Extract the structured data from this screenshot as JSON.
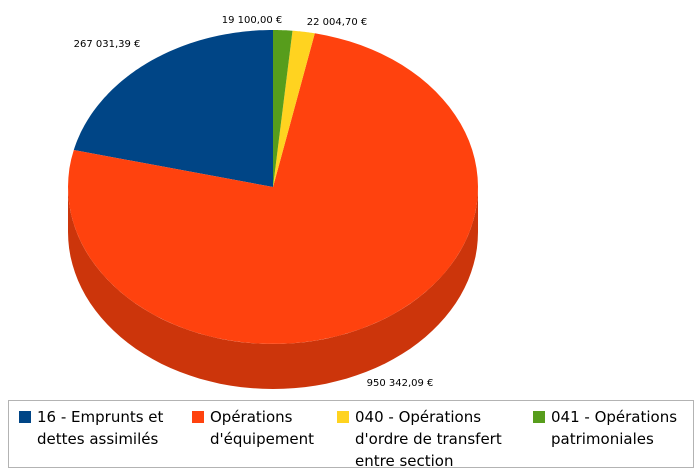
{
  "chart_data": {
    "type": "pie",
    "categories": [
      "16 - Emprunts et dettes assimilés",
      "Opérations d'équipement",
      "040 - Opérations d'ordre de transfert entre section",
      "041 - Opérations patrimoniales"
    ],
    "values": [
      267031.39,
      950342.09,
      22004.7,
      19100.0
    ],
    "value_labels": [
      "267 031,39 €",
      "950 342,09 €",
      "22 004,70 €",
      "19 100,00 €"
    ],
    "colors": [
      "#004586",
      "#ff420e",
      "#ffd320",
      "#579d1c"
    ],
    "legend": "bottom"
  }
}
